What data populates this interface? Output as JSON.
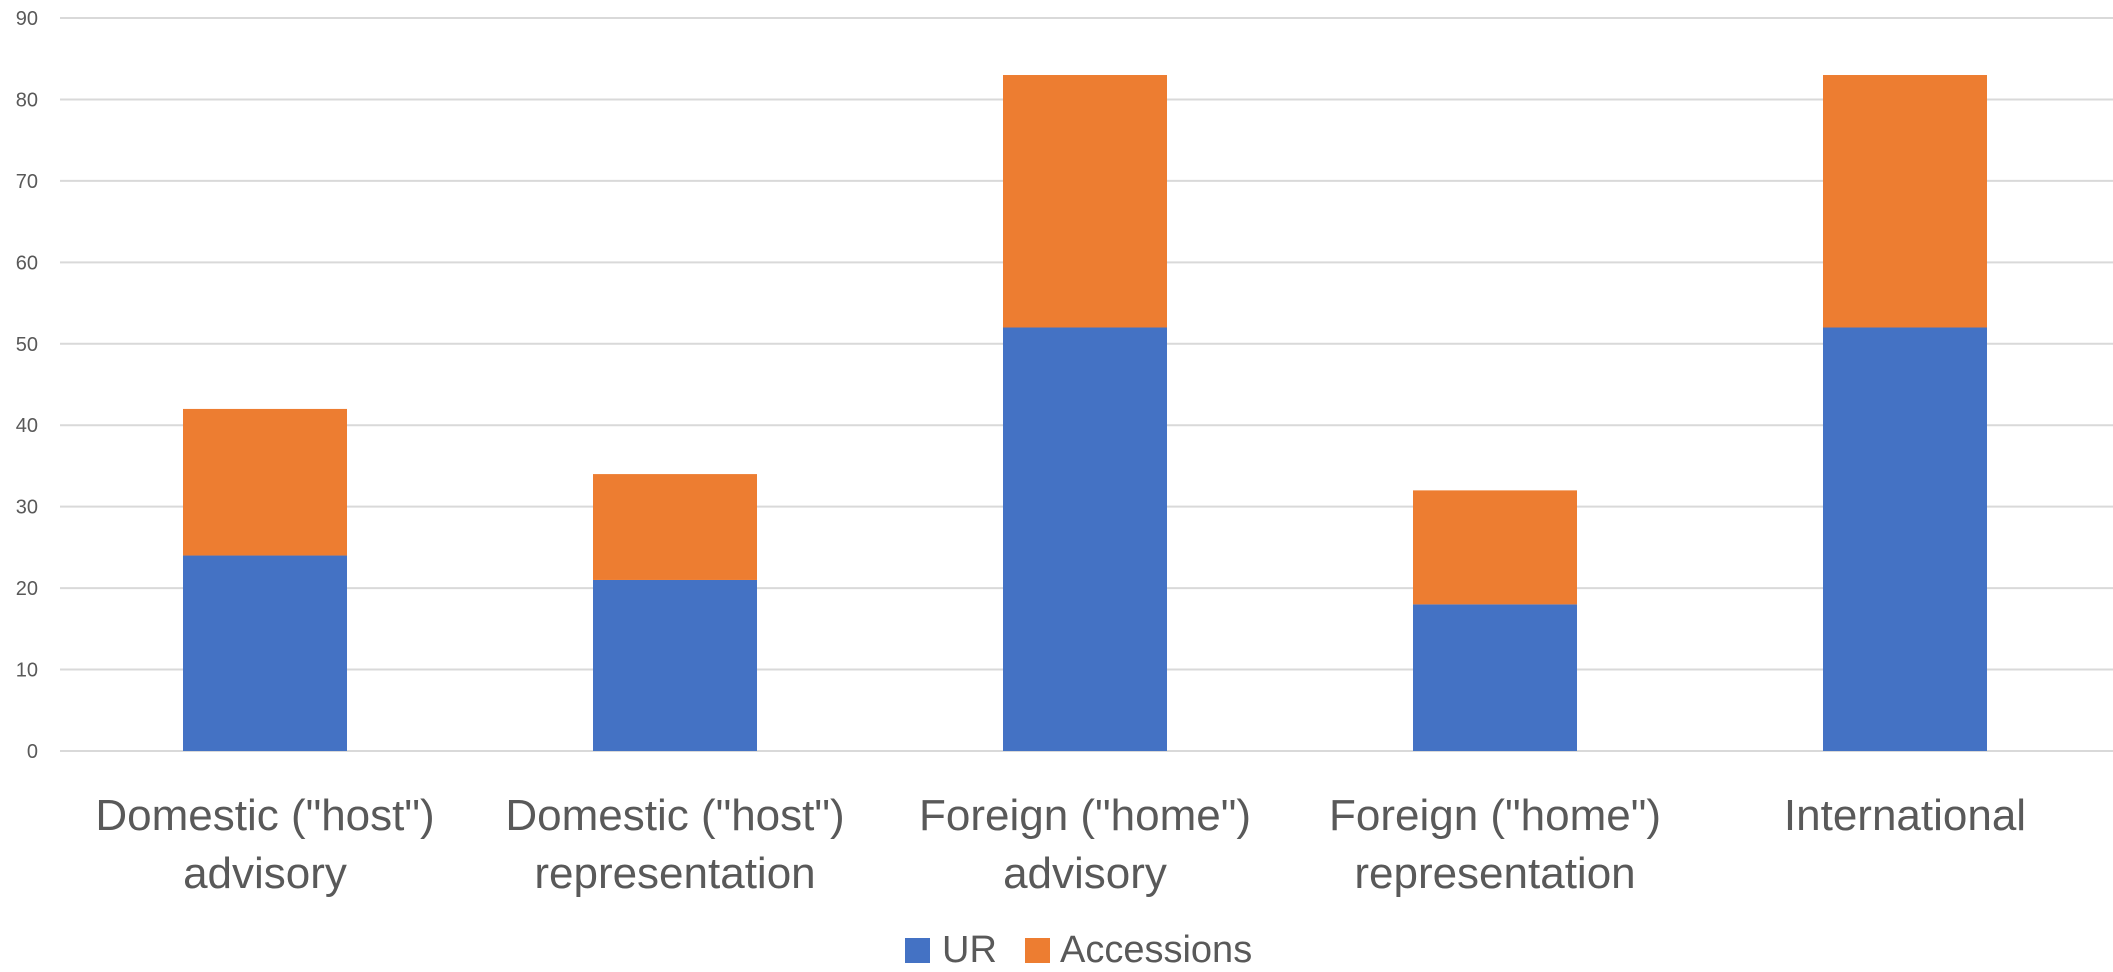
{
  "chart_data": {
    "type": "bar",
    "stacked": true,
    "categories": [
      [
        "Domestic (\"host\")",
        "advisory"
      ],
      [
        "Domestic (\"host\")",
        "representation"
      ],
      [
        "Foreign (\"home\")",
        "advisory"
      ],
      [
        "Foreign (\"home\")",
        "representation"
      ],
      [
        "International"
      ]
    ],
    "series": [
      {
        "name": "UR",
        "color": "#4472C4",
        "values": [
          24,
          21,
          52,
          18,
          52
        ]
      },
      {
        "name": "Accessions",
        "color": "#ED7D31",
        "values": [
          18,
          13,
          31,
          14,
          31
        ]
      }
    ],
    "ylim": [
      0,
      90
    ],
    "yticks": [
      "0",
      "10",
      "20",
      "30",
      "40",
      "50",
      "60",
      "70",
      "80",
      "90"
    ],
    "grid": true,
    "legend_position": "bottom-center",
    "title": "",
    "xlabel": "",
    "ylabel": ""
  }
}
